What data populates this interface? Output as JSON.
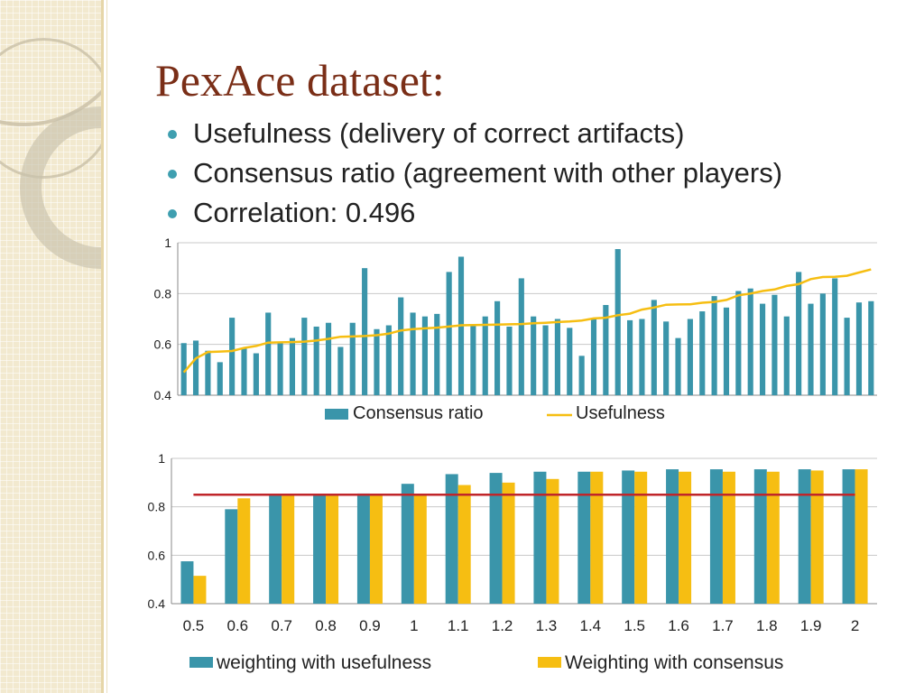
{
  "slide": {
    "title": "PexAce dataset:",
    "bullets": [
      "Usefulness (delivery of correct artifacts)",
      "Consensus ratio (agreement with other players)",
      "Correlation: 0.496"
    ]
  },
  "colors": {
    "title": "#7a2e17",
    "bullet_dot": "#3f9fb0",
    "teal": "#3a95aa",
    "gold": "#f6be12",
    "red_line": "#c0262a",
    "sidebar": "#f2e9cf"
  },
  "chart_data": [
    {
      "type": "bar",
      "description": "Consensus ratio bars per player with Usefulness line",
      "ylim": [
        0.4,
        1
      ],
      "yticks": [
        "0.4",
        "0.6",
        "0.8",
        "1"
      ],
      "grid": true,
      "legend_position": "bottom",
      "x_tick_labels_visible": false,
      "series": [
        {
          "name": "Consensus ratio",
          "type": "bar",
          "color": "#3a95aa",
          "values": [
            0.605,
            0.615,
            0.575,
            0.53,
            0.705,
            0.585,
            0.565,
            0.725,
            0.605,
            0.625,
            0.705,
            0.67,
            0.685,
            0.59,
            0.685,
            0.9,
            0.66,
            0.675,
            0.785,
            0.725,
            0.71,
            0.72,
            0.885,
            0.945,
            0.675,
            0.71,
            0.77,
            0.67,
            0.86,
            0.71,
            0.675,
            0.7,
            0.665,
            0.555,
            0.7,
            0.755,
            0.975,
            0.695,
            0.7,
            0.775,
            0.69,
            0.625,
            0.7,
            0.73,
            0.79,
            0.745,
            0.81,
            0.82,
            0.76,
            0.795,
            0.71,
            0.885,
            0.76,
            0.8,
            0.86,
            0.705,
            0.765,
            0.77
          ]
        },
        {
          "name": "Usefulness",
          "type": "line",
          "color": "#f6be12",
          "values": [
            0.49,
            0.545,
            0.57,
            0.572,
            0.574,
            0.586,
            0.594,
            0.607,
            0.608,
            0.609,
            0.611,
            0.615,
            0.622,
            0.63,
            0.631,
            0.633,
            0.636,
            0.642,
            0.655,
            0.66,
            0.663,
            0.666,
            0.67,
            0.675,
            0.676,
            0.677,
            0.678,
            0.679,
            0.68,
            0.683,
            0.685,
            0.688,
            0.69,
            0.694,
            0.702,
            0.705,
            0.715,
            0.721,
            0.737,
            0.745,
            0.756,
            0.757,
            0.758,
            0.764,
            0.767,
            0.775,
            0.793,
            0.8,
            0.81,
            0.816,
            0.83,
            0.837,
            0.857,
            0.865,
            0.866,
            0.87,
            0.883,
            0.895
          ]
        }
      ]
    },
    {
      "type": "bar",
      "description": "Weighting comparison with reference line",
      "categories": [
        "0.5",
        "0.6",
        "0.7",
        "0.8",
        "0.9",
        "1",
        "1.1",
        "1.2",
        "1.3",
        "1.4",
        "1.5",
        "1.6",
        "1.7",
        "1.8",
        "1.9",
        "2"
      ],
      "ylim": [
        0.4,
        1
      ],
      "yticks": [
        "0.4",
        "0.6",
        "0.8",
        "1"
      ],
      "grid": true,
      "legend_position": "bottom",
      "series": [
        {
          "name": "weighting with usefulness",
          "type": "bar",
          "color": "#3a95aa",
          "values": [
            0.575,
            0.79,
            0.85,
            0.85,
            0.855,
            0.895,
            0.935,
            0.94,
            0.945,
            0.945,
            0.95,
            0.955,
            0.955,
            0.955,
            0.955,
            0.955
          ]
        },
        {
          "name": "Weighting with consensus",
          "type": "bar",
          "color": "#f6be12",
          "values": [
            0.515,
            0.835,
            0.85,
            0.85,
            0.85,
            0.85,
            0.89,
            0.9,
            0.915,
            0.945,
            0.945,
            0.945,
            0.945,
            0.945,
            0.95,
            0.955
          ]
        },
        {
          "name": "",
          "type": "line",
          "color": "#c0262a",
          "values": [
            0.85,
            0.85,
            0.85,
            0.85,
            0.85,
            0.85,
            0.85,
            0.85,
            0.85,
            0.85,
            0.85,
            0.85,
            0.85,
            0.85,
            0.85,
            0.85
          ]
        }
      ]
    }
  ]
}
